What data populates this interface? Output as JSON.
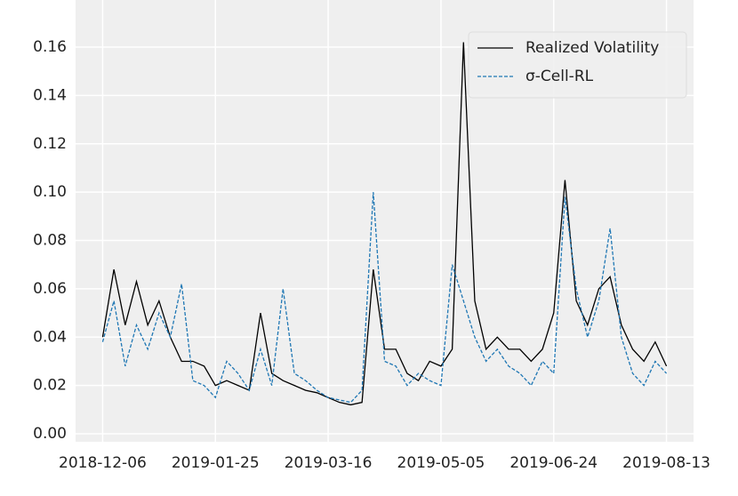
{
  "chart_data": {
    "type": "line",
    "x": [
      "2018-12-06",
      "2018-12-11",
      "2018-12-16",
      "2018-12-21",
      "2018-12-26",
      "2018-12-31",
      "2019-01-05",
      "2019-01-10",
      "2019-01-15",
      "2019-01-20",
      "2019-01-25",
      "2019-01-30",
      "2019-02-04",
      "2019-02-09",
      "2019-02-14",
      "2019-02-19",
      "2019-02-24",
      "2019-03-01",
      "2019-03-06",
      "2019-03-11",
      "2019-03-16",
      "2019-03-21",
      "2019-03-26",
      "2019-03-31",
      "2019-04-05",
      "2019-04-10",
      "2019-04-15",
      "2019-04-20",
      "2019-04-25",
      "2019-04-30",
      "2019-05-05",
      "2019-05-10",
      "2019-05-15",
      "2019-05-20",
      "2019-05-25",
      "2019-05-30",
      "2019-06-04",
      "2019-06-09",
      "2019-06-14",
      "2019-06-19",
      "2019-06-24",
      "2019-06-29",
      "2019-07-04",
      "2019-07-09",
      "2019-07-14",
      "2019-07-19",
      "2019-07-24",
      "2019-07-29",
      "2019-08-03",
      "2019-08-08",
      "2019-08-13"
    ],
    "series": [
      {
        "name": "Realized Volatility",
        "color": "#000000",
        "dash": "solid",
        "values": [
          0.04,
          0.068,
          0.045,
          0.063,
          0.045,
          0.055,
          0.04,
          0.03,
          0.03,
          0.028,
          0.02,
          0.022,
          0.02,
          0.018,
          0.05,
          0.025,
          0.022,
          0.02,
          0.018,
          0.017,
          0.015,
          0.013,
          0.012,
          0.013,
          0.068,
          0.035,
          0.035,
          0.025,
          0.022,
          0.03,
          0.028,
          0.035,
          0.162,
          0.055,
          0.035,
          0.04,
          0.035,
          0.035,
          0.03,
          0.035,
          0.05,
          0.105,
          0.055,
          0.045,
          0.06,
          0.065,
          0.045,
          0.035,
          0.03,
          0.038,
          0.028
        ]
      },
      {
        "name": "σ-Cell-RL",
        "color": "#1f77b4",
        "dash": "dashed",
        "values": [
          0.038,
          0.055,
          0.028,
          0.045,
          0.035,
          0.05,
          0.04,
          0.062,
          0.022,
          0.02,
          0.015,
          0.03,
          0.025,
          0.018,
          0.035,
          0.02,
          0.06,
          0.025,
          0.022,
          0.018,
          0.015,
          0.014,
          0.013,
          0.018,
          0.1,
          0.03,
          0.028,
          0.02,
          0.025,
          0.022,
          0.02,
          0.07,
          0.055,
          0.04,
          0.03,
          0.035,
          0.028,
          0.025,
          0.02,
          0.03,
          0.025,
          0.098,
          0.06,
          0.04,
          0.055,
          0.085,
          0.04,
          0.025,
          0.02,
          0.03,
          0.025
        ]
      }
    ],
    "xlim": [
      "2018-11-24",
      "2019-08-25"
    ],
    "xticks": [
      "2018-12-06",
      "2019-01-25",
      "2019-03-16",
      "2019-05-05",
      "2019-06-24",
      "2019-08-13"
    ],
    "ylim": [
      -0.0033,
      0.1795
    ],
    "yticks": [
      {
        "value": 0,
        "label": "0.00"
      },
      {
        "value": 0.02,
        "label": "0.02"
      },
      {
        "value": 0.04,
        "label": "0.04"
      },
      {
        "value": 0.06,
        "label": "0.06"
      },
      {
        "value": 0.08,
        "label": "0.08"
      },
      {
        "value": 0.1,
        "label": "0.10"
      },
      {
        "value": 0.12,
        "label": "0.12"
      },
      {
        "value": 0.14,
        "label": "0.14"
      },
      {
        "value": 0.16,
        "label": "0.16"
      }
    ],
    "grid": true,
    "legend": "upper right"
  }
}
